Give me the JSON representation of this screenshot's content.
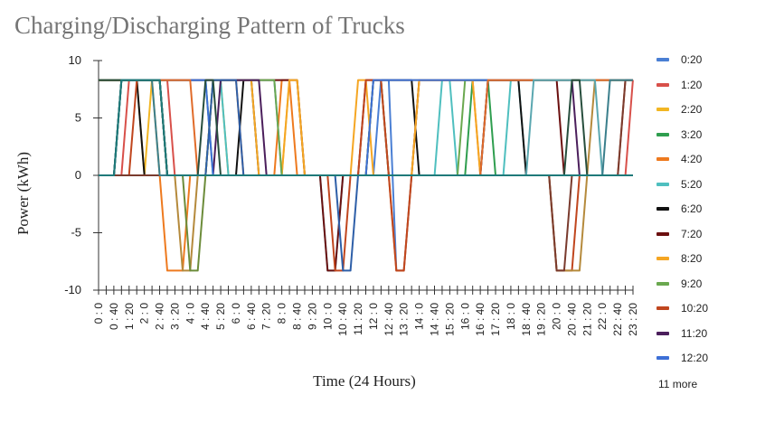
{
  "chart_data": {
    "type": "line",
    "title": "Charging/Discharging Pattern of Trucks",
    "xlabel": "Time (24 Hours)",
    "ylabel": "Power (kWh)",
    "ylim": [
      -10,
      10
    ],
    "yticks": [
      10,
      5,
      0,
      -5,
      -10
    ],
    "xlim": [
      0,
      23.333
    ],
    "tick_step_hours": 0.3333,
    "x_tick_labels": [
      "0 : 0",
      "0 : 40",
      "1 : 20",
      "2 : 0",
      "2 : 40",
      "3 : 20",
      "4 : 0",
      "4 : 40",
      "5 : 20",
      "6 : 0",
      "6 : 40",
      "7 : 20",
      "8 : 0",
      "8 : 40",
      "9 : 20",
      "10 : 0",
      "10 : 40",
      "11 : 20",
      "12 : 0",
      "12 : 40",
      "13 : 20",
      "14 : 0",
      "14 : 40",
      "15 : 20",
      "16 : 0",
      "16 : 40",
      "17 : 20",
      "18 : 0",
      "18 : 40",
      "19 : 20",
      "20 : 0",
      "20 : 40",
      "21 : 20",
      "22 : 0",
      "22 : 40",
      "23 : 20"
    ],
    "legend_position": "right",
    "legend_more": "11 more",
    "series": [
      {
        "name": "0:20",
        "color": "#4a7fd4",
        "points": [
          [
            0,
            0
          ],
          [
            0.67,
            0
          ],
          [
            1,
            8.3
          ],
          [
            7.67,
            8.3
          ],
          [
            8,
            0
          ],
          [
            12,
            0
          ],
          [
            12.33,
            8.3
          ],
          [
            12.67,
            8.3
          ],
          [
            13,
            -8.3
          ],
          [
            13.33,
            -8.3
          ],
          [
            13.67,
            0
          ],
          [
            23.33,
            0
          ]
        ]
      },
      {
        "name": "1:20",
        "color": "#d8504a",
        "points": [
          [
            0,
            0
          ],
          [
            1,
            0
          ],
          [
            1.33,
            8.3
          ],
          [
            3,
            8.3
          ],
          [
            3.33,
            0
          ],
          [
            23,
            0
          ],
          [
            23.33,
            8.3
          ]
        ]
      },
      {
        "name": "2:20",
        "color": "#f2b623",
        "points": [
          [
            0,
            8.3
          ],
          [
            1.67,
            8.3
          ],
          [
            2,
            0
          ],
          [
            2.33,
            8.3
          ],
          [
            2.67,
            8.3
          ],
          [
            3,
            0
          ],
          [
            4.67,
            0
          ],
          [
            5,
            8.3
          ],
          [
            5.33,
            8.3
          ],
          [
            5.67,
            0
          ],
          [
            8,
            0
          ],
          [
            8.33,
            8.3
          ],
          [
            8.67,
            8.3
          ],
          [
            9,
            0
          ],
          [
            11.67,
            0
          ],
          [
            12,
            8.3
          ],
          [
            23.33,
            8.3
          ]
        ]
      },
      {
        "name": "3:20",
        "color": "#2f9e4f",
        "points": [
          [
            0,
            8.3
          ],
          [
            4.67,
            8.3
          ],
          [
            5,
            0
          ],
          [
            16,
            0
          ],
          [
            16.33,
            8.3
          ],
          [
            17,
            8.3
          ],
          [
            17.33,
            0
          ],
          [
            23.33,
            0
          ]
        ]
      },
      {
        "name": "4:20",
        "color": "#ee7a1f",
        "points": [
          [
            0,
            0
          ],
          [
            2.67,
            0
          ],
          [
            3,
            -8.3
          ],
          [
            3.67,
            -8.3
          ],
          [
            4,
            0
          ],
          [
            4.67,
            0
          ],
          [
            5,
            8.3
          ],
          [
            6,
            8.3
          ],
          [
            6.33,
            0
          ],
          [
            7.67,
            0
          ],
          [
            8,
            8.3
          ],
          [
            8.33,
            8.3
          ],
          [
            8.67,
            0
          ],
          [
            12.67,
            0
          ],
          [
            13,
            -8.3
          ],
          [
            13.33,
            -8.3
          ],
          [
            13.67,
            0
          ],
          [
            14,
            8.3
          ],
          [
            16.33,
            8.3
          ],
          [
            16.67,
            0
          ],
          [
            23.33,
            0
          ]
        ]
      },
      {
        "name": "5:20",
        "color": "#4fbfbf",
        "points": [
          [
            0,
            0
          ],
          [
            0.67,
            0
          ],
          [
            1,
            8.3
          ],
          [
            2.67,
            8.3
          ],
          [
            3,
            0
          ],
          [
            4.67,
            0
          ],
          [
            5,
            8.3
          ],
          [
            5.33,
            8.3
          ],
          [
            5.67,
            0
          ],
          [
            9.67,
            0
          ],
          [
            10,
            -8.3
          ],
          [
            10.33,
            -8.3
          ],
          [
            10.67,
            0
          ],
          [
            14.67,
            0
          ],
          [
            15,
            8.3
          ],
          [
            15.33,
            8.3
          ],
          [
            15.67,
            0
          ],
          [
            17.67,
            0
          ],
          [
            18,
            8.3
          ],
          [
            18.33,
            8.3
          ],
          [
            18.67,
            0
          ],
          [
            23.33,
            0
          ]
        ]
      },
      {
        "name": "6:20",
        "color": "#111111",
        "points": [
          [
            0,
            8.3
          ],
          [
            1.67,
            8.3
          ],
          [
            2,
            0
          ],
          [
            6,
            0
          ],
          [
            6.33,
            8.3
          ],
          [
            6.67,
            8.3
          ],
          [
            7,
            0
          ],
          [
            11.67,
            0
          ],
          [
            12,
            8.3
          ],
          [
            13.67,
            8.3
          ],
          [
            14,
            0
          ],
          [
            16.67,
            0
          ],
          [
            17,
            8.3
          ],
          [
            18.33,
            8.3
          ],
          [
            18.67,
            0
          ],
          [
            23.33,
            0
          ]
        ]
      },
      {
        "name": "7:20",
        "color": "#6b0f0f",
        "points": [
          [
            0,
            8.3
          ],
          [
            8.67,
            8.3
          ],
          [
            9,
            0
          ],
          [
            9.67,
            0
          ],
          [
            10,
            -8.3
          ],
          [
            10.33,
            -8.3
          ],
          [
            10.67,
            0
          ],
          [
            11.33,
            0
          ],
          [
            11.67,
            8.3
          ],
          [
            12.33,
            8.3
          ],
          [
            12.67,
            0
          ],
          [
            13.67,
            0
          ],
          [
            14,
            8.3
          ],
          [
            20,
            8.3
          ],
          [
            20.33,
            0
          ],
          [
            23.33,
            0
          ]
        ]
      },
      {
        "name": "8:20",
        "color": "#f5a623",
        "points": [
          [
            0,
            8.3
          ],
          [
            2.33,
            8.3
          ],
          [
            2.67,
            0
          ],
          [
            4.67,
            0
          ],
          [
            5,
            8.3
          ],
          [
            6.67,
            8.3
          ],
          [
            7,
            0
          ],
          [
            8,
            0
          ],
          [
            8.33,
            8.3
          ],
          [
            8.67,
            8.3
          ],
          [
            9,
            0
          ],
          [
            11,
            0
          ],
          [
            11.33,
            8.3
          ],
          [
            11.67,
            8.3
          ],
          [
            12,
            0
          ],
          [
            13.67,
            0
          ],
          [
            14,
            8.3
          ],
          [
            16.33,
            8.3
          ],
          [
            16.67,
            0
          ],
          [
            23.33,
            0
          ]
        ]
      },
      {
        "name": "9:20",
        "color": "#6aa84f",
        "points": [
          [
            0,
            0
          ],
          [
            4.67,
            0
          ],
          [
            5,
            8.3
          ],
          [
            7.67,
            8.3
          ],
          [
            8,
            0
          ],
          [
            11.67,
            0
          ],
          [
            12,
            8.3
          ],
          [
            12.33,
            8.3
          ],
          [
            12.67,
            0
          ],
          [
            15.67,
            0
          ],
          [
            16,
            8.3
          ],
          [
            23.33,
            8.3
          ]
        ]
      },
      {
        "name": "10:20",
        "color": "#c0461e",
        "points": [
          [
            0,
            0
          ],
          [
            1.33,
            0
          ],
          [
            1.67,
            8.3
          ],
          [
            2.67,
            8.3
          ],
          [
            3,
            0
          ],
          [
            10,
            0
          ],
          [
            10.33,
            -8.3
          ],
          [
            10.67,
            -8.3
          ],
          [
            11,
            0
          ],
          [
            11.33,
            0
          ],
          [
            11.67,
            8.3
          ],
          [
            12.33,
            8.3
          ],
          [
            12.67,
            0
          ],
          [
            13,
            -8.3
          ],
          [
            13.33,
            -8.3
          ],
          [
            13.67,
            0
          ],
          [
            19.67,
            0
          ],
          [
            20,
            -8.3
          ],
          [
            20.67,
            -8.3
          ],
          [
            21,
            0
          ],
          [
            22.67,
            0
          ],
          [
            23,
            8.3
          ],
          [
            23.33,
            8.3
          ]
        ]
      },
      {
        "name": "11:20",
        "color": "#4b1f5c",
        "points": [
          [
            0,
            0
          ],
          [
            5,
            0
          ],
          [
            5.33,
            8.3
          ],
          [
            7,
            8.3
          ],
          [
            7.33,
            0
          ],
          [
            16.67,
            0
          ],
          [
            17,
            8.3
          ],
          [
            20.67,
            8.3
          ],
          [
            21,
            0
          ],
          [
            23.33,
            0
          ]
        ]
      },
      {
        "name": "12:20",
        "color": "#3d6fd6",
        "points": [
          [
            0,
            8.3
          ],
          [
            4.67,
            8.3
          ],
          [
            5,
            0
          ],
          [
            11.67,
            0
          ],
          [
            12,
            8.3
          ],
          [
            23.33,
            8.3
          ]
        ]
      },
      {
        "color": "#b58a3c",
        "points": [
          [
            0,
            0
          ],
          [
            0.67,
            0
          ],
          [
            1,
            8.3
          ],
          [
            2.67,
            8.3
          ],
          [
            3,
            0
          ],
          [
            3.33,
            0
          ],
          [
            3.67,
            -8.3
          ],
          [
            4,
            -8.3
          ],
          [
            4.33,
            0
          ],
          [
            19.67,
            0
          ],
          [
            20,
            -8.3
          ],
          [
            21,
            -8.3
          ],
          [
            21.33,
            0
          ],
          [
            21.67,
            8.3
          ],
          [
            23.33,
            8.3
          ]
        ]
      },
      {
        "color": "#2e5fa8",
        "points": [
          [
            0,
            0
          ],
          [
            4.67,
            0
          ],
          [
            5,
            8.3
          ],
          [
            6,
            8.3
          ],
          [
            6.33,
            0
          ],
          [
            10.33,
            0
          ],
          [
            10.67,
            -8.3
          ],
          [
            11,
            -8.3
          ],
          [
            11.33,
            0
          ],
          [
            23.33,
            0
          ]
        ]
      },
      {
        "color": "#e06b2a",
        "points": [
          [
            0,
            8.3
          ],
          [
            4,
            8.3
          ],
          [
            4.33,
            0
          ],
          [
            16.67,
            0
          ],
          [
            17,
            8.3
          ],
          [
            23.33,
            8.3
          ]
        ]
      },
      {
        "color": "#5aa7b0",
        "points": [
          [
            0,
            0
          ],
          [
            18.67,
            0
          ],
          [
            19,
            8.3
          ],
          [
            21.67,
            8.3
          ],
          [
            22,
            0
          ],
          [
            23.33,
            0
          ]
        ]
      },
      {
        "color": "#7a3b2e",
        "points": [
          [
            0,
            0
          ],
          [
            19.67,
            0
          ],
          [
            20,
            -8.3
          ],
          [
            20.33,
            -8.3
          ],
          [
            20.67,
            0
          ],
          [
            22.67,
            0
          ],
          [
            23,
            8.3
          ],
          [
            23.33,
            8.3
          ]
        ]
      },
      {
        "color": "#6c8c3a",
        "points": [
          [
            0,
            8.3
          ],
          [
            2.67,
            8.3
          ],
          [
            3,
            0
          ],
          [
            3.67,
            0
          ],
          [
            4,
            -8.3
          ],
          [
            4.33,
            -8.3
          ],
          [
            4.67,
            0
          ],
          [
            23.33,
            0
          ]
        ]
      },
      {
        "color": "#3b7f8c",
        "points": [
          [
            0,
            0
          ],
          [
            0.67,
            0
          ],
          [
            1,
            8.3
          ],
          [
            2.33,
            8.3
          ],
          [
            2.67,
            0
          ],
          [
            22,
            0
          ],
          [
            22.33,
            8.3
          ],
          [
            23.33,
            8.3
          ]
        ]
      },
      {
        "color": "#274e3d",
        "points": [
          [
            0,
            8.3
          ],
          [
            2.67,
            8.3
          ],
          [
            3,
            0
          ],
          [
            4.33,
            0
          ],
          [
            4.67,
            8.3
          ],
          [
            5,
            8.3
          ],
          [
            5.33,
            0
          ],
          [
            20.33,
            0
          ],
          [
            20.67,
            8.3
          ],
          [
            21,
            8.3
          ],
          [
            21.33,
            0
          ],
          [
            23.33,
            0
          ]
        ]
      },
      {
        "color": "#2f8f8f",
        "points": [
          [
            0,
            0
          ],
          [
            0.67,
            0
          ],
          [
            1,
            8.3
          ],
          [
            2.67,
            8.3
          ],
          [
            3,
            0
          ],
          [
            23.33,
            0
          ]
        ]
      },
      {
        "color": "#18474f",
        "points": [
          [
            0,
            0
          ],
          [
            0.67,
            0
          ],
          [
            1,
            8.3
          ],
          [
            2.67,
            8.3
          ],
          [
            3,
            0
          ],
          [
            12.67,
            0
          ],
          [
            13,
            0
          ],
          [
            23.33,
            0
          ]
        ]
      },
      {
        "color": "#1f7a7a",
        "points": [
          [
            0,
            0
          ],
          [
            0.67,
            0
          ],
          [
            1,
            8.3
          ],
          [
            2.67,
            8.3
          ],
          [
            3,
            0
          ],
          [
            23.33,
            0
          ]
        ]
      }
    ]
  }
}
